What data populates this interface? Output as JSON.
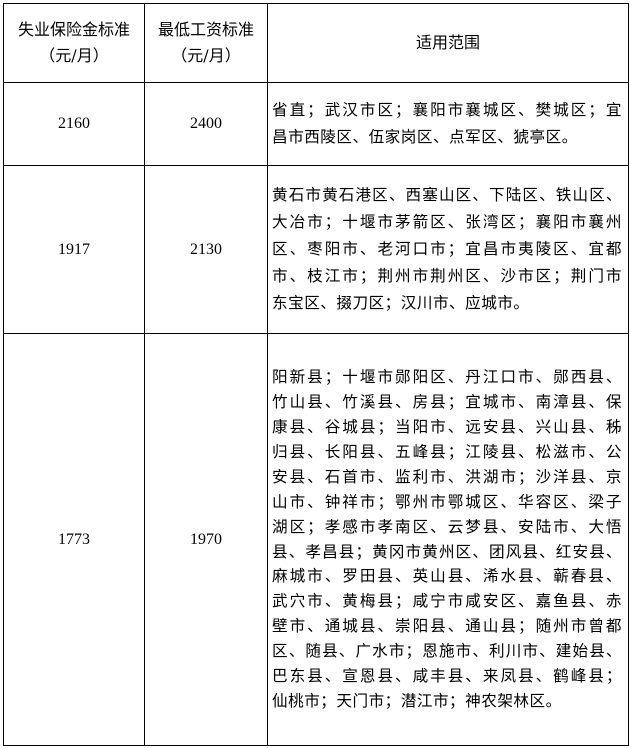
{
  "table": {
    "headers": [
      {
        "line1": "失业保险金标准",
        "line2": "（元/月）"
      },
      {
        "line1": "最低工资标准",
        "line2": "（元/月）"
      },
      {
        "line1": "适用范围",
        "line2": ""
      }
    ],
    "rows": [
      {
        "unemployment": "2160",
        "min_wage": "2400",
        "scope_lines": [
          "省直；武汉市区；襄阳市襄城区、樊城区；宜",
          "昌市西陵区、伍家岗区、点军区、猇亭区。"
        ]
      },
      {
        "unemployment": "1917",
        "min_wage": "2130",
        "scope_lines": [
          "黄石市黄石港区、西塞山区、下陆区、铁山区、",
          "大冶市；十堰市茅箭区、张湾区；襄阳市襄州",
          "区、枣阳市、老河口市；宜昌市夷陵区、宜都",
          "市、枝江市；荆州市荆州区、沙市区；荆门市",
          "东宝区、掇刀区；汉川市、应城市。"
        ]
      },
      {
        "unemployment": "1773",
        "min_wage": "1970",
        "scope_lines": [
          "阳新县；十堰市郧阳区、丹江口市、郧西县、",
          "竹山县、竹溪县、房县；宜城市、南漳县、保",
          "康县、谷城县；当阳市、远安县、兴山县、秭",
          "归县、长阳县、五峰县；江陵县、松滋市、公",
          "安县、石首市、监利市、洪湖市；沙洋县、京",
          "山市、钟祥市；鄂州市鄂城区、华容区、梁子",
          "湖区；孝感市孝南区、云梦县、安陆市、大悟",
          "县、孝昌县；黄冈市黄州区、团风县、红安县、",
          "麻城市、罗田县、英山县、浠水县、蕲春县、",
          "武穴市、黄梅县；咸宁市咸安区、嘉鱼县、赤",
          "壁市、通城县、崇阳县、通山县；随州市曾都",
          "区、随县、广水市；恩施市、利川市、建始县、",
          "巴东县、宣恩县、咸丰县、来凤县、鹤峰县；",
          "仙桃市；天门市；潜江市；神农架林区。"
        ]
      }
    ]
  }
}
